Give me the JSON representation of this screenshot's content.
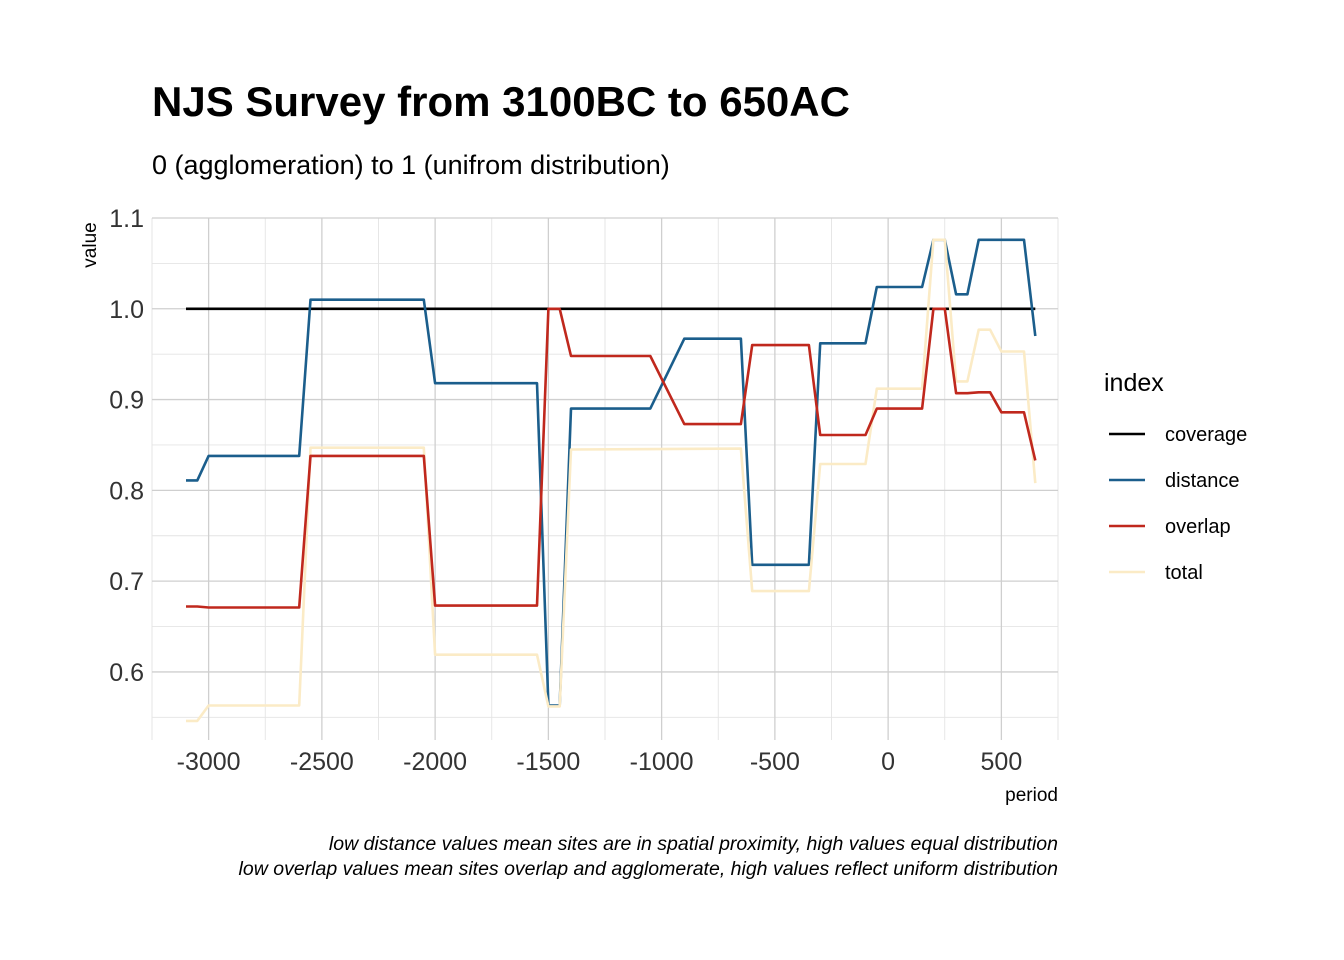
{
  "chart_data": {
    "type": "line",
    "title": "NJS Survey from 3100BC to 650AC",
    "subtitle": "0 (agglomeration) to 1 (unifrom distribution)",
    "xlabel": "period",
    "ylabel": "value",
    "xlim": [
      -3250,
      750
    ],
    "ylim": [
      0.525,
      1.1
    ],
    "x_ticks": [
      -3000,
      -2500,
      -2000,
      -1500,
      -1000,
      -500,
      0,
      500
    ],
    "x_tick_labels": [
      "-3000",
      "-2500",
      "-2000",
      "-1500",
      "-1000",
      "-500",
      "0",
      "500"
    ],
    "y_ticks": [
      0.6,
      0.7,
      0.8,
      0.9,
      1.0,
      1.1
    ],
    "y_tick_labels": [
      "0.6",
      "0.7",
      "0.8",
      "0.9",
      "1.0",
      "1.1"
    ],
    "grid": true,
    "legend": {
      "title": "index",
      "position": "right"
    },
    "series": [
      {
        "name": "coverage",
        "color": "#000000",
        "points": [
          [
            -3100,
            1.0
          ],
          [
            650,
            1.0
          ]
        ]
      },
      {
        "name": "distance",
        "color": "#1b5e8c",
        "points": [
          [
            -3100,
            0.811
          ],
          [
            -3050,
            0.811
          ],
          [
            -3000,
            0.838
          ],
          [
            -2600,
            0.838
          ],
          [
            -2550,
            1.01
          ],
          [
            -2050,
            1.01
          ],
          [
            -2000,
            0.918
          ],
          [
            -1550,
            0.918
          ],
          [
            -1500,
            0.563
          ],
          [
            -1450,
            0.563
          ],
          [
            -1400,
            0.89
          ],
          [
            -1050,
            0.89
          ],
          [
            -900,
            0.967
          ],
          [
            -650,
            0.967
          ],
          [
            -600,
            0.718
          ],
          [
            -350,
            0.718
          ],
          [
            -300,
            0.962
          ],
          [
            -100,
            0.962
          ],
          [
            -50,
            1.024
          ],
          [
            150,
            1.024
          ],
          [
            200,
            1.076
          ],
          [
            250,
            1.076
          ],
          [
            300,
            1.016
          ],
          [
            350,
            1.016
          ],
          [
            400,
            1.076
          ],
          [
            600,
            1.076
          ],
          [
            650,
            0.97
          ]
        ]
      },
      {
        "name": "overlap",
        "color": "#c0281d",
        "points": [
          [
            -3100,
            0.672
          ],
          [
            -3050,
            0.672
          ],
          [
            -3000,
            0.671
          ],
          [
            -2600,
            0.671
          ],
          [
            -2550,
            0.838
          ],
          [
            -2050,
            0.838
          ],
          [
            -2000,
            0.673
          ],
          [
            -1550,
            0.673
          ],
          [
            -1500,
            1.0
          ],
          [
            -1450,
            1.0
          ],
          [
            -1400,
            0.948
          ],
          [
            -1050,
            0.948
          ],
          [
            -900,
            0.873
          ],
          [
            -650,
            0.873
          ],
          [
            -600,
            0.96
          ],
          [
            -350,
            0.96
          ],
          [
            -300,
            0.861
          ],
          [
            -100,
            0.861
          ],
          [
            -50,
            0.89
          ],
          [
            150,
            0.89
          ],
          [
            200,
            1.0
          ],
          [
            250,
            1.0
          ],
          [
            300,
            0.907
          ],
          [
            350,
            0.907
          ],
          [
            400,
            0.908
          ],
          [
            450,
            0.908
          ],
          [
            500,
            0.886
          ],
          [
            600,
            0.886
          ],
          [
            650,
            0.833
          ]
        ]
      },
      {
        "name": "total",
        "color": "#fbebc6",
        "points": [
          [
            -3100,
            0.546
          ],
          [
            -3050,
            0.546
          ],
          [
            -3000,
            0.563
          ],
          [
            -2600,
            0.563
          ],
          [
            -2550,
            0.847
          ],
          [
            -2050,
            0.847
          ],
          [
            -2000,
            0.619
          ],
          [
            -1550,
            0.619
          ],
          [
            -1500,
            0.562
          ],
          [
            -1450,
            0.562
          ],
          [
            -1400,
            0.845
          ],
          [
            -650,
            0.846
          ],
          [
            -600,
            0.689
          ],
          [
            -350,
            0.689
          ],
          [
            -300,
            0.829
          ],
          [
            -100,
            0.829
          ],
          [
            -50,
            0.912
          ],
          [
            150,
            0.912
          ],
          [
            200,
            1.076
          ],
          [
            250,
            1.076
          ],
          [
            300,
            0.92
          ],
          [
            350,
            0.92
          ],
          [
            400,
            0.977
          ],
          [
            450,
            0.977
          ],
          [
            500,
            0.953
          ],
          [
            600,
            0.953
          ],
          [
            650,
            0.808
          ]
        ]
      }
    ],
    "caption": [
      "low distance values mean sites are in spatial proximity, high values equal distribution",
      "low overlap values mean sites  overlap and agglomerate, high values reflect uniform distribution "
    ]
  }
}
